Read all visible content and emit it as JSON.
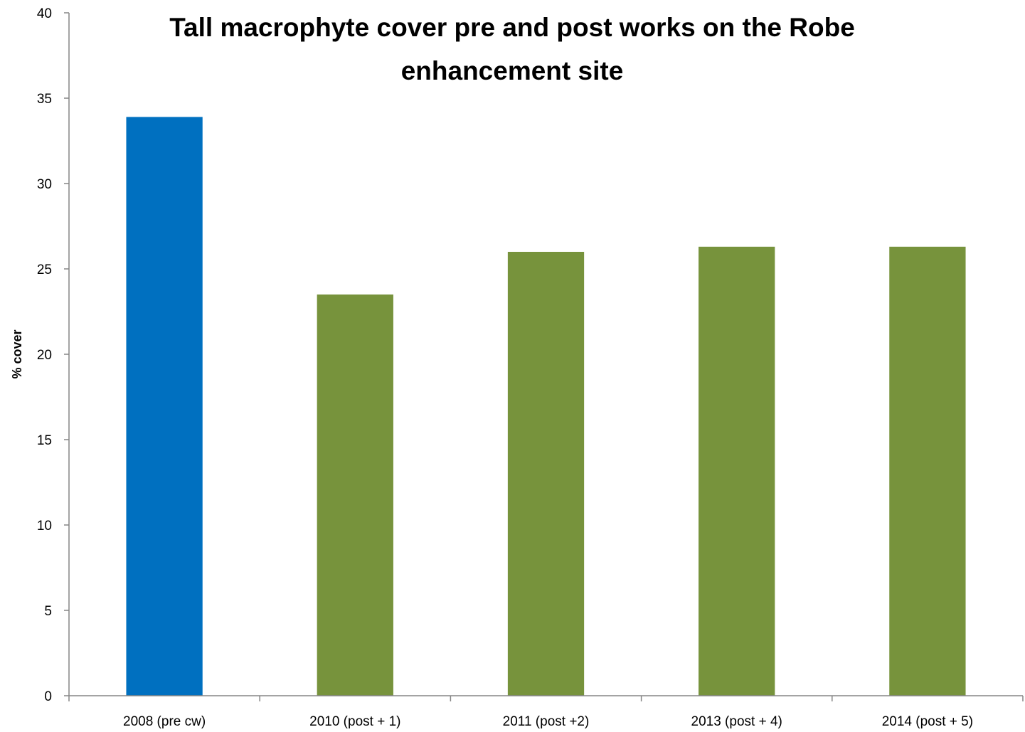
{
  "chart_data": {
    "type": "bar",
    "title_line1": "Tall macrophyte  cover pre and post works on the Robe",
    "title_line2": "enhancement site",
    "xlabel": "",
    "ylabel": "% cover",
    "categories": [
      "2008 (pre cw)",
      "2010 (post + 1)",
      "2011 (post +2)",
      "2013 (post + 4)",
      "2014 (post + 5)"
    ],
    "values": [
      33.9,
      23.5,
      26.0,
      26.3,
      26.3
    ],
    "bar_colors": [
      "#0070C0",
      "#77933C",
      "#77933C",
      "#77933C",
      "#77933C"
    ],
    "ylim": [
      0,
      40
    ],
    "yticks": [
      0,
      5,
      10,
      15,
      20,
      25,
      30,
      35,
      40
    ],
    "grid": false,
    "legend": "none"
  }
}
